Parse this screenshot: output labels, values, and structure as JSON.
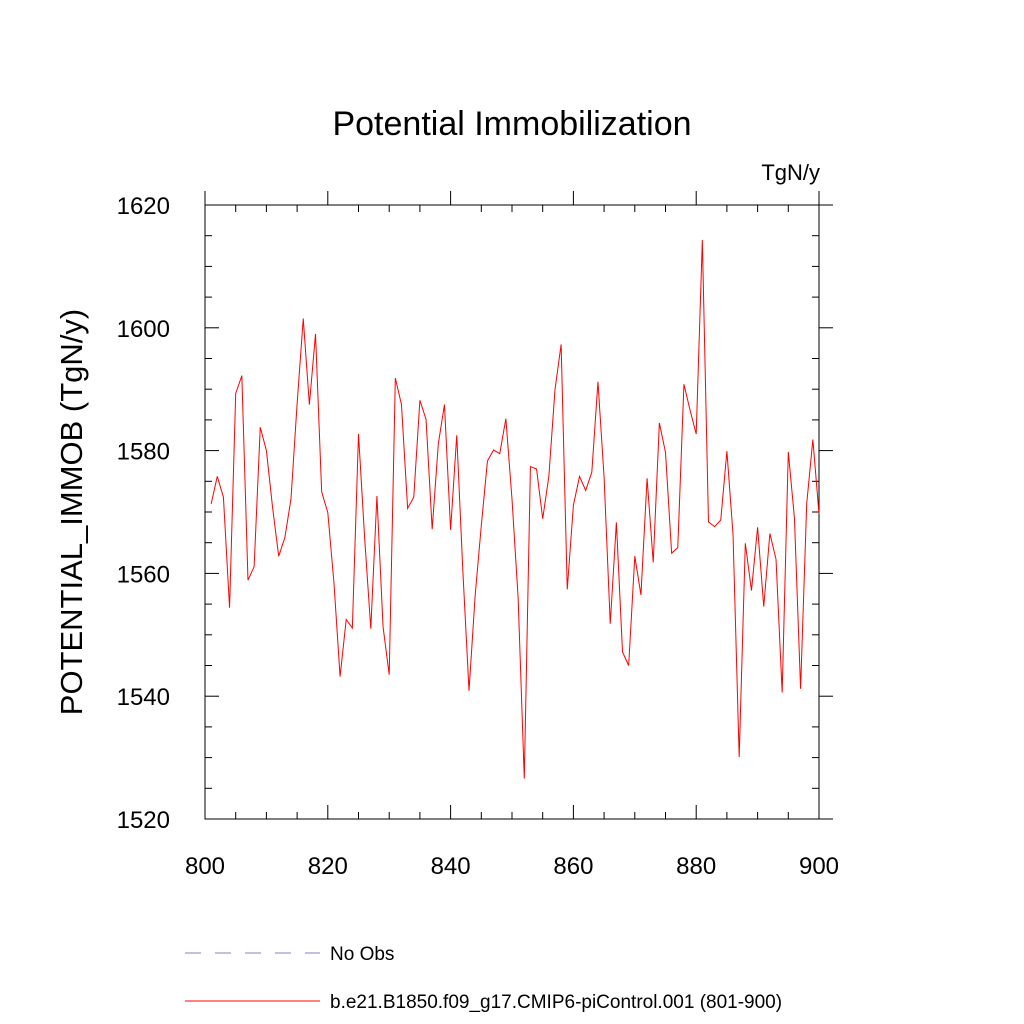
{
  "chart_data": {
    "type": "line",
    "title": "Potential Immobilization",
    "units_label": "TgN/y",
    "xlabel": "",
    "ylabel": "POTENTIAL_IMMOB  (TgN/y)",
    "xlim": [
      800,
      900
    ],
    "ylim": [
      1520,
      1620
    ],
    "x_ticks": [
      800,
      820,
      840,
      860,
      880,
      900
    ],
    "y_ticks": [
      1520,
      1540,
      1560,
      1580,
      1600,
      1620
    ],
    "x_minor_step": 5,
    "y_minor_step": 5,
    "grid": false,
    "legend_position": "bottom",
    "series": [
      {
        "name": "No Obs",
        "color": "#8a80c8",
        "style": "dashed",
        "x": [],
        "values": []
      },
      {
        "name": "b.e21.B1850.f09_g17.CMIP6-piControl.001 (801-900)",
        "color": "#ff0000",
        "style": "solid",
        "x": [
          801,
          802,
          803,
          804,
          805,
          806,
          807,
          808,
          809,
          810,
          811,
          812,
          813,
          814,
          815,
          816,
          817,
          818,
          819,
          820,
          821,
          822,
          823,
          824,
          825,
          826,
          827,
          828,
          829,
          830,
          831,
          832,
          833,
          834,
          835,
          836,
          837,
          838,
          839,
          840,
          841,
          842,
          843,
          844,
          845,
          846,
          847,
          848,
          849,
          850,
          851,
          852,
          853,
          854,
          855,
          856,
          857,
          858,
          859,
          860,
          861,
          862,
          863,
          864,
          865,
          866,
          867,
          868,
          869,
          870,
          871,
          872,
          873,
          874,
          875,
          876,
          877,
          878,
          879,
          880,
          881,
          882,
          883,
          884,
          885,
          886,
          887,
          888,
          889,
          890,
          891,
          892,
          893,
          894,
          895,
          896,
          897,
          898,
          899,
          900
        ],
        "values": [
          1571.3,
          1575.8,
          1572.4,
          1554.4,
          1589.3,
          1592.2,
          1558.9,
          1561.1,
          1583.8,
          1580.0,
          1570.8,
          1562.8,
          1565.8,
          1572.1,
          1587.6,
          1601.5,
          1587.5,
          1599.0,
          1573.3,
          1569.9,
          1558.5,
          1543.2,
          1552.5,
          1551.1,
          1582.7,
          1565.8,
          1551.0,
          1572.6,
          1551.3,
          1543.5,
          1591.8,
          1587.5,
          1570.6,
          1572.4,
          1588.2,
          1585.1,
          1567.2,
          1581.1,
          1587.5,
          1567.1,
          1582.5,
          1560.3,
          1540.9,
          1556.4,
          1567.8,
          1578.3,
          1580.1,
          1579.5,
          1585.2,
          1572.1,
          1556.0,
          1526.6,
          1577.4,
          1577.0,
          1568.9,
          1575.8,
          1589.9,
          1597.3,
          1557.4,
          1571.1,
          1575.8,
          1573.5,
          1576.5,
          1591.2,
          1575.6,
          1551.8,
          1568.3,
          1547.2,
          1545.0,
          1562.8,
          1556.5,
          1575.5,
          1561.8,
          1584.5,
          1579.7,
          1563.3,
          1564.2,
          1590.8,
          1586.6,
          1582.7,
          1614.3,
          1568.4,
          1567.6,
          1568.7,
          1579.9,
          1566.3,
          1530.1,
          1564.9,
          1557.2,
          1567.5,
          1554.6,
          1566.5,
          1562.3,
          1540.6,
          1579.8,
          1569.0,
          1541.2,
          1571.4,
          1581.8,
          1569.7
        ]
      }
    ]
  }
}
